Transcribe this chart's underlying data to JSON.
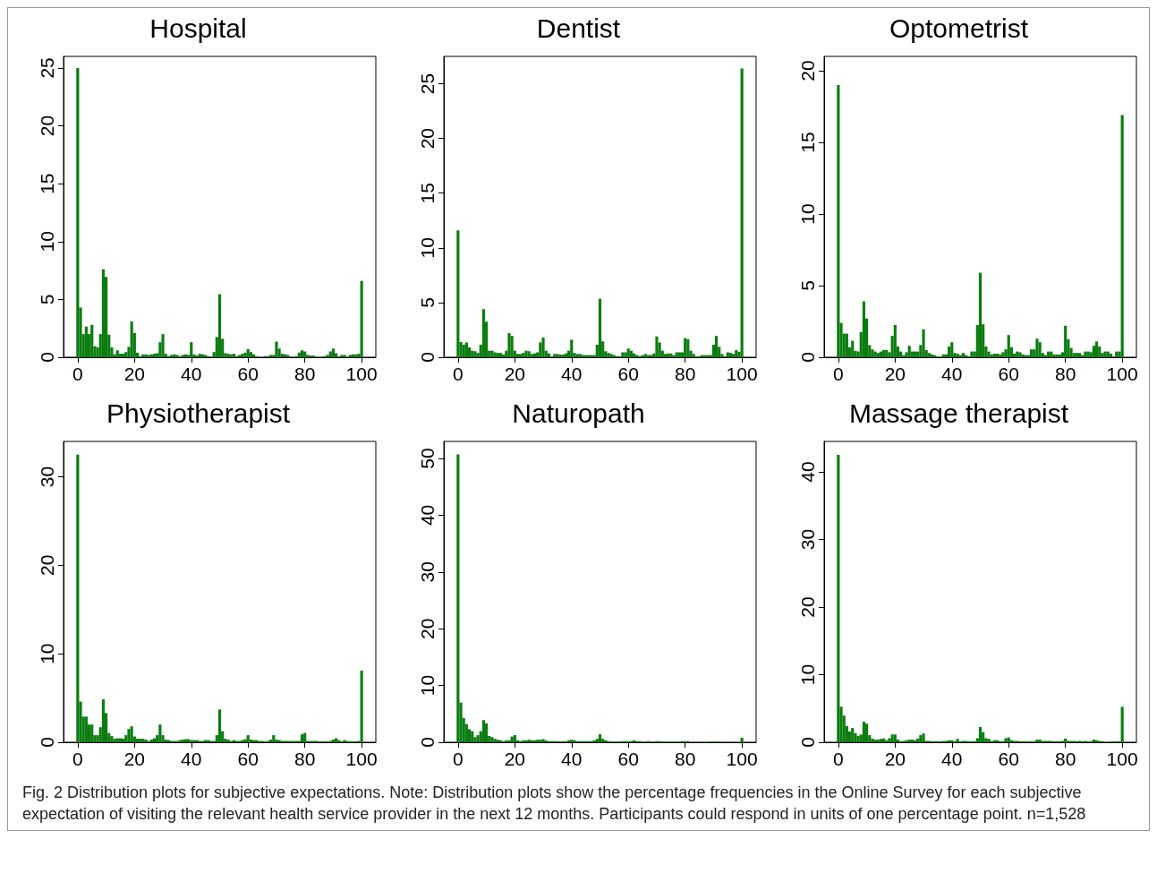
{
  "chart_data": [
    {
      "type": "histogram",
      "title": "Hospital",
      "color": "#0b7d10",
      "xlim": [
        -5,
        105
      ],
      "xticks": [
        0,
        20,
        40,
        60,
        80,
        100
      ],
      "ylim": [
        0,
        26
      ],
      "yticks": [
        0,
        5,
        10,
        15,
        20,
        25
      ],
      "bins": [
        -0.5,
        0.5,
        1.5,
        2.5,
        3.5,
        4.5,
        5.5,
        6.5,
        7.5,
        8.5,
        9.5,
        10.5,
        11.5,
        12.5,
        13.5,
        14.5,
        15.5,
        16.5,
        17.5,
        18.5,
        19.5,
        20.5,
        21.5,
        22.5,
        23.5,
        24.5,
        25.5,
        26.5,
        27.5,
        28.5,
        29.5,
        30.5,
        31.5,
        32.5,
        33.5,
        34.5,
        35.5,
        36.5,
        37.5,
        38.5,
        39.5,
        40.5,
        41.5,
        42.5,
        43.5,
        44.5,
        45.5,
        46.5,
        47.5,
        48.5,
        49.5,
        50.5,
        51.5,
        52.5,
        53.5,
        54.5,
        55.5,
        56.5,
        57.5,
        58.5,
        59.5,
        60.5,
        61.5,
        62.5,
        63.5,
        64.5,
        65.5,
        66.5,
        67.5,
        68.5,
        69.5,
        70.5,
        71.5,
        72.5,
        73.5,
        74.5,
        75.5,
        76.5,
        77.5,
        78.5,
        79.5,
        80.5,
        81.5,
        82.5,
        83.5,
        84.5,
        85.5,
        86.5,
        87.5,
        88.5,
        89.5,
        90.5,
        91.5,
        92.5,
        93.5,
        94.5,
        95.5,
        96.5,
        97.5,
        98.5,
        99.5,
        100.5
      ],
      "values": [
        25,
        4.3,
        2.0,
        2.65,
        2.0,
        2.8,
        0.95,
        0.85,
        2.0,
        7.6,
        6.95,
        1.95,
        0.85,
        0.25,
        0.6,
        0.3,
        0.3,
        0.45,
        0.9,
        3.1,
        2.1,
        0.4,
        0.1,
        0.25,
        0.25,
        0.2,
        0.25,
        0.3,
        0.35,
        1.3,
        2.0,
        0.3,
        0.1,
        0.2,
        0.25,
        0.2,
        0.1,
        0.2,
        0.25,
        0.2,
        1.3,
        0.25,
        0.15,
        0.3,
        0.25,
        0.2,
        0.1,
        0.05,
        0.45,
        1.75,
        5.45,
        1.6,
        0.35,
        0.3,
        0.25,
        0.3,
        0.1,
        0.2,
        0.3,
        0.4,
        0.7,
        0.45,
        0.25,
        0.1,
        0,
        0,
        0.1,
        0.1,
        0.2,
        0.2,
        1.35,
        0.75,
        0.3,
        0.25,
        0.2,
        0.05,
        0,
        0.1,
        0.4,
        0.6,
        0.5,
        0.2,
        0.15,
        0.15,
        0.05,
        0,
        0,
        0.1,
        0.2,
        0.5,
        0.75,
        0.35,
        0.05,
        0.2,
        0.2,
        0.05,
        0.2,
        0.25,
        0.25,
        0.3,
        6.6
      ]
    },
    {
      "type": "histogram",
      "title": "Dentist",
      "color": "#0b7d10",
      "xlim": [
        -5,
        105
      ],
      "xticks": [
        0,
        20,
        40,
        60,
        80,
        100
      ],
      "ylim": [
        0,
        27.5
      ],
      "yticks": [
        0,
        5,
        10,
        15,
        20,
        25
      ],
      "bins": [
        -0.5,
        0.5,
        1.5,
        2.5,
        3.5,
        4.5,
        5.5,
        6.5,
        7.5,
        8.5,
        9.5,
        10.5,
        11.5,
        12.5,
        13.5,
        14.5,
        15.5,
        16.5,
        17.5,
        18.5,
        19.5,
        20.5,
        21.5,
        22.5,
        23.5,
        24.5,
        25.5,
        26.5,
        27.5,
        28.5,
        29.5,
        30.5,
        31.5,
        32.5,
        33.5,
        34.5,
        35.5,
        36.5,
        37.5,
        38.5,
        39.5,
        40.5,
        41.5,
        42.5,
        43.5,
        44.5,
        45.5,
        46.5,
        47.5,
        48.5,
        49.5,
        50.5,
        51.5,
        52.5,
        53.5,
        54.5,
        55.5,
        56.5,
        57.5,
        58.5,
        59.5,
        60.5,
        61.5,
        62.5,
        63.5,
        64.5,
        65.5,
        66.5,
        67.5,
        68.5,
        69.5,
        70.5,
        71.5,
        72.5,
        73.5,
        74.5,
        75.5,
        76.5,
        77.5,
        78.5,
        79.5,
        80.5,
        81.5,
        82.5,
        83.5,
        84.5,
        85.5,
        86.5,
        87.5,
        88.5,
        89.5,
        90.5,
        91.5,
        92.5,
        93.5,
        94.5,
        95.5,
        96.5,
        97.5,
        98.5,
        99.5,
        100.5
      ],
      "values": [
        11.6,
        1.4,
        1.15,
        1.35,
        0.9,
        0.6,
        0.55,
        0.4,
        1.15,
        4.4,
        3.25,
        0.6,
        0.6,
        0.45,
        0.4,
        0.4,
        0.25,
        0.6,
        2.2,
        1.95,
        0.6,
        0.3,
        0.3,
        0.4,
        0.6,
        0.55,
        0.3,
        0.35,
        0.45,
        1.35,
        1.8,
        0.6,
        0.35,
        0.05,
        0.3,
        0.3,
        0.25,
        0.25,
        0.35,
        0.6,
        1.6,
        0.4,
        0.3,
        0.3,
        0.2,
        0.2,
        0.2,
        0.2,
        0.2,
        1.15,
        5.35,
        1.45,
        0.55,
        0.4,
        0.3,
        0.2,
        0.1,
        0.05,
        0.45,
        0.45,
        0.8,
        0.6,
        0.35,
        0.2,
        0.1,
        0.2,
        0.3,
        0.2,
        0.2,
        0.35,
        1.9,
        1.35,
        0.6,
        0.3,
        0.35,
        0.35,
        0.2,
        0.45,
        0.45,
        0.45,
        1.75,
        1.65,
        0.6,
        0.3,
        0.05,
        0.1,
        0.2,
        0.2,
        0.2,
        0.2,
        1.15,
        1.95,
        0.95,
        0.3,
        0.1,
        0.45,
        0.4,
        0.3,
        0.65,
        0.5,
        26.4
      ]
    },
    {
      "type": "histogram",
      "title": "Optometrist",
      "color": "#0b7d10",
      "xlim": [
        -5,
        105
      ],
      "xticks": [
        0,
        20,
        40,
        60,
        80,
        100
      ],
      "ylim": [
        0,
        21
      ],
      "yticks": [
        0,
        5,
        10,
        15,
        20
      ],
      "bins": [
        -0.5,
        0.5,
        1.5,
        2.5,
        3.5,
        4.5,
        5.5,
        6.5,
        7.5,
        8.5,
        9.5,
        10.5,
        11.5,
        12.5,
        13.5,
        14.5,
        15.5,
        16.5,
        17.5,
        18.5,
        19.5,
        20.5,
        21.5,
        22.5,
        23.5,
        24.5,
        25.5,
        26.5,
        27.5,
        28.5,
        29.5,
        30.5,
        31.5,
        32.5,
        33.5,
        34.5,
        35.5,
        36.5,
        37.5,
        38.5,
        39.5,
        40.5,
        41.5,
        42.5,
        43.5,
        44.5,
        45.5,
        46.5,
        47.5,
        48.5,
        49.5,
        50.5,
        51.5,
        52.5,
        53.5,
        54.5,
        55.5,
        56.5,
        57.5,
        58.5,
        59.5,
        60.5,
        61.5,
        62.5,
        63.5,
        64.5,
        65.5,
        66.5,
        67.5,
        68.5,
        69.5,
        70.5,
        71.5,
        72.5,
        73.5,
        74.5,
        75.5,
        76.5,
        77.5,
        78.5,
        79.5,
        80.5,
        81.5,
        82.5,
        83.5,
        84.5,
        85.5,
        86.5,
        87.5,
        88.5,
        89.5,
        90.5,
        91.5,
        92.5,
        93.5,
        94.5,
        95.5,
        96.5,
        97.5,
        98.5,
        99.5,
        100.5
      ],
      "values": [
        19.0,
        2.4,
        1.65,
        1.65,
        0.7,
        1.15,
        0.45,
        0.4,
        1.75,
        3.9,
        2.7,
        0.85,
        0.55,
        0.4,
        0.3,
        0.4,
        0.5,
        0.5,
        0.35,
        1.5,
        2.25,
        0.75,
        0.4,
        0.15,
        0.35,
        0.8,
        0.4,
        0.4,
        0.4,
        0.85,
        1.95,
        0.5,
        0.3,
        0.2,
        0.15,
        0.05,
        0,
        0.2,
        0.2,
        0.75,
        1.05,
        0.3,
        0.25,
        0.15,
        0.3,
        0.15,
        0.05,
        0.4,
        0.4,
        2.25,
        5.9,
        2.3,
        0.75,
        0.4,
        0.2,
        0.25,
        0.25,
        0.2,
        0.35,
        0.55,
        1.55,
        0.7,
        0.25,
        0.4,
        0.35,
        0.2,
        0.15,
        0.15,
        0.55,
        0.55,
        1.3,
        1.05,
        0.3,
        0.15,
        0.4,
        0.4,
        0.2,
        0.2,
        0.2,
        0.35,
        2.2,
        1.25,
        0.65,
        0.3,
        0.3,
        0.3,
        0.15,
        0.4,
        0.4,
        0.35,
        0.8,
        1.1,
        0.75,
        0.3,
        0.4,
        0.4,
        0.25,
        0.05,
        0.4,
        0.4,
        16.9
      ]
    },
    {
      "type": "histogram",
      "title": "Physiotherapist",
      "color": "#0b7d10",
      "xlim": [
        -5,
        105
      ],
      "xticks": [
        0,
        20,
        40,
        60,
        80,
        100
      ],
      "ylim": [
        0,
        34
      ],
      "yticks": [
        0,
        10,
        20,
        30
      ],
      "bins": [
        -0.5,
        0.5,
        1.5,
        2.5,
        3.5,
        4.5,
        5.5,
        6.5,
        7.5,
        8.5,
        9.5,
        10.5,
        11.5,
        12.5,
        13.5,
        14.5,
        15.5,
        16.5,
        17.5,
        18.5,
        19.5,
        20.5,
        21.5,
        22.5,
        23.5,
        24.5,
        25.5,
        26.5,
        27.5,
        28.5,
        29.5,
        30.5,
        31.5,
        32.5,
        33.5,
        34.5,
        35.5,
        36.5,
        37.5,
        38.5,
        39.5,
        40.5,
        41.5,
        42.5,
        43.5,
        44.5,
        45.5,
        46.5,
        47.5,
        48.5,
        49.5,
        50.5,
        51.5,
        52.5,
        53.5,
        54.5,
        55.5,
        56.5,
        57.5,
        58.5,
        59.5,
        60.5,
        61.5,
        62.5,
        63.5,
        64.5,
        65.5,
        66.5,
        67.5,
        68.5,
        69.5,
        70.5,
        71.5,
        72.5,
        73.5,
        74.5,
        75.5,
        76.5,
        77.5,
        78.5,
        79.5,
        80.5,
        81.5,
        82.5,
        83.5,
        84.5,
        85.5,
        86.5,
        87.5,
        88.5,
        89.5,
        90.5,
        91.5,
        92.5,
        93.5,
        94.5,
        95.5,
        96.5,
        97.5,
        98.5,
        99.5,
        100.5
      ],
      "values": [
        32.5,
        4.6,
        2.9,
        2.9,
        2.0,
        2.0,
        0.8,
        0.8,
        1.7,
        4.85,
        3.3,
        1.05,
        0.7,
        0.4,
        0.45,
        0.45,
        0.4,
        0.8,
        1.5,
        1.8,
        0.65,
        0.4,
        0.4,
        0.4,
        0.3,
        0.15,
        0.3,
        0.45,
        0.8,
        2.0,
        0.8,
        0.3,
        0.25,
        0.15,
        0.15,
        0.15,
        0.25,
        0.3,
        0.35,
        0.35,
        0.25,
        0.25,
        0.25,
        0.15,
        0.15,
        0.25,
        0.25,
        0.15,
        0.15,
        0.8,
        3.7,
        1.25,
        0.4,
        0.3,
        0.15,
        0.25,
        0.15,
        0.15,
        0.25,
        0.35,
        0.8,
        0.3,
        0.25,
        0.25,
        0.15,
        0.15,
        0.1,
        0.15,
        0.3,
        0.8,
        0.3,
        0.25,
        0.15,
        0.15,
        0.15,
        0.15,
        0.15,
        0.15,
        0.15,
        0.9,
        1.05,
        0.15,
        0.15,
        0.15,
        0.15,
        0.1,
        0.1,
        0.1,
        0.1,
        0.15,
        0.3,
        0.45,
        0.25,
        0.1,
        0.25,
        0.15,
        0.1,
        0.1,
        0.1,
        0.15,
        8.1
      ]
    },
    {
      "type": "histogram",
      "title": "Naturopath",
      "color": "#0b7d10",
      "xlim": [
        -5,
        105
      ],
      "xticks": [
        0,
        20,
        40,
        60,
        80,
        100
      ],
      "ylim": [
        0,
        53
      ],
      "yticks": [
        0,
        10,
        20,
        30,
        40,
        50
      ],
      "bins": [
        -0.5,
        0.5,
        1.5,
        2.5,
        3.5,
        4.5,
        5.5,
        6.5,
        7.5,
        8.5,
        9.5,
        10.5,
        11.5,
        12.5,
        13.5,
        14.5,
        15.5,
        16.5,
        17.5,
        18.5,
        19.5,
        20.5,
        21.5,
        22.5,
        23.5,
        24.5,
        25.5,
        26.5,
        27.5,
        28.5,
        29.5,
        30.5,
        31.5,
        32.5,
        33.5,
        34.5,
        35.5,
        36.5,
        37.5,
        38.5,
        39.5,
        40.5,
        41.5,
        42.5,
        43.5,
        44.5,
        45.5,
        46.5,
        47.5,
        48.5,
        49.5,
        50.5,
        51.5,
        52.5,
        53.5,
        54.5,
        55.5,
        56.5,
        57.5,
        58.5,
        59.5,
        60.5,
        61.5,
        62.5,
        63.5,
        64.5,
        65.5,
        66.5,
        67.5,
        68.5,
        69.5,
        70.5,
        71.5,
        72.5,
        73.5,
        74.5,
        75.5,
        76.5,
        77.5,
        78.5,
        79.5,
        80.5,
        81.5,
        82.5,
        83.5,
        84.5,
        85.5,
        86.5,
        87.5,
        88.5,
        89.5,
        90.5,
        91.5,
        92.5,
        93.5,
        94.5,
        95.5,
        96.5,
        97.5,
        98.5,
        99.5,
        100.5
      ],
      "values": [
        50.7,
        7.0,
        4.25,
        3.2,
        2.3,
        1.95,
        0.9,
        1.25,
        1.95,
        3.9,
        3.35,
        1.1,
        0.9,
        0.6,
        0.45,
        0.35,
        0.2,
        0.35,
        0.35,
        1.0,
        1.25,
        0.35,
        0.2,
        0.35,
        0.35,
        0.45,
        0.35,
        0.35,
        0.45,
        0.45,
        0.55,
        0.35,
        0.2,
        0.2,
        0.2,
        0.2,
        0.1,
        0.2,
        0.1,
        0.35,
        0.45,
        0.35,
        0.2,
        0.2,
        0.2,
        0.2,
        0.2,
        0.2,
        0.35,
        0.6,
        1.4,
        0.6,
        0.35,
        0.2,
        0.1,
        0.1,
        0.1,
        0.1,
        0.2,
        0.2,
        0.2,
        0.2,
        0.35,
        0.2,
        0.2,
        0.1,
        0.1,
        0.2,
        0.1,
        0.1,
        0.2,
        0.2,
        0.1,
        0.1,
        0.1,
        0.1,
        0.1,
        0.1,
        0.1,
        0.2,
        0.2,
        0.2,
        0,
        0,
        0,
        0,
        0,
        0,
        0,
        0.1,
        0.1,
        0.1,
        0.1,
        0,
        0,
        0,
        0,
        0,
        0,
        0,
        0.8
      ]
    },
    {
      "type": "histogram",
      "title": "Massage therapist",
      "color": "#0b7d10",
      "xlim": [
        -5,
        105
      ],
      "xticks": [
        0,
        20,
        40,
        60,
        80,
        100
      ],
      "ylim": [
        0,
        44.5
      ],
      "yticks": [
        0,
        10,
        20,
        30,
        40
      ],
      "bins": [
        -0.5,
        0.5,
        1.5,
        2.5,
        3.5,
        4.5,
        5.5,
        6.5,
        7.5,
        8.5,
        9.5,
        10.5,
        11.5,
        12.5,
        13.5,
        14.5,
        15.5,
        16.5,
        17.5,
        18.5,
        19.5,
        20.5,
        21.5,
        22.5,
        23.5,
        24.5,
        25.5,
        26.5,
        27.5,
        28.5,
        29.5,
        30.5,
        31.5,
        32.5,
        33.5,
        34.5,
        35.5,
        36.5,
        37.5,
        38.5,
        39.5,
        40.5,
        41.5,
        42.5,
        43.5,
        44.5,
        45.5,
        46.5,
        47.5,
        48.5,
        49.5,
        50.5,
        51.5,
        52.5,
        53.5,
        54.5,
        55.5,
        56.5,
        57.5,
        58.5,
        59.5,
        60.5,
        61.5,
        62.5,
        63.5,
        64.5,
        65.5,
        66.5,
        67.5,
        68.5,
        69.5,
        70.5,
        71.5,
        72.5,
        73.5,
        74.5,
        75.5,
        76.5,
        77.5,
        78.5,
        79.5,
        80.5,
        81.5,
        82.5,
        83.5,
        84.5,
        85.5,
        86.5,
        87.5,
        88.5,
        89.5,
        90.5,
        91.5,
        92.5,
        93.5,
        94.5,
        95.5,
        96.5,
        97.5,
        98.5,
        99.5,
        100.5
      ],
      "values": [
        42.5,
        5.25,
        3.95,
        2.4,
        1.6,
        2.1,
        1.35,
        0.95,
        1.15,
        3.05,
        2.75,
        1.05,
        0.55,
        0.4,
        0.4,
        0.5,
        0.55,
        0.3,
        0.6,
        1.15,
        1.15,
        0.4,
        0.15,
        0.2,
        0.3,
        0.4,
        0.4,
        0.3,
        0.55,
        1.05,
        1.3,
        0.2,
        0.2,
        0.15,
        0.15,
        0.15,
        0.15,
        0.2,
        0.2,
        0.3,
        0.3,
        0.15,
        0.5,
        0.15,
        0.2,
        0.2,
        0.15,
        0.15,
        0.15,
        0.6,
        2.25,
        1.5,
        0.6,
        0.5,
        0.2,
        0.3,
        0.3,
        0.15,
        0.15,
        0.6,
        0.7,
        0.3,
        0.2,
        0.2,
        0.15,
        0.15,
        0.15,
        0.1,
        0.15,
        0.15,
        0.4,
        0.4,
        0.2,
        0.2,
        0.2,
        0.2,
        0.15,
        0.15,
        0.15,
        0.2,
        0.55,
        0.2,
        0.2,
        0.2,
        0.15,
        0.2,
        0.15,
        0.2,
        0.15,
        0.15,
        0.4,
        0.3,
        0.2,
        0.15,
        0,
        0,
        0.1,
        0.1,
        0.15,
        0.15,
        5.25
      ],
      "annotations": [
        "Fig. 2 Distribution plots for subjective expectations. Note: Distribution plots show the percentage frequencies in the Online Survey for each subjective expectation of visiting the relevant health service provider in the next 12 months. Participants could respond in units of one percentage point. n=1,528"
      ]
    }
  ]
}
